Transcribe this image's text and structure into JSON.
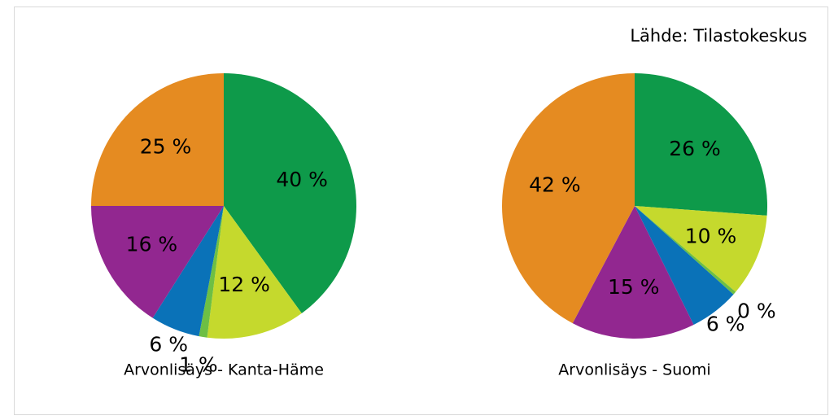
{
  "source": "Lähde: Tilastokeskus",
  "chart_data": [
    {
      "type": "pie",
      "title": "Arvonlisäys - Kanta-Häme",
      "values": [
        40,
        12,
        1,
        6,
        16,
        25
      ],
      "value_labels": [
        "40 %",
        "12 %",
        "1 %",
        "6 %",
        "16 %",
        "25 %"
      ],
      "colors": [
        "#0e9a4a",
        "#c5d92d",
        "#6dbf44",
        "#0a72b8",
        "#922790",
        "#e58b21"
      ]
    },
    {
      "type": "pie",
      "title": "Arvonlisäys - Suomi",
      "values": [
        26,
        10,
        0.4,
        6,
        15,
        42
      ],
      "value_labels": [
        "26 %",
        "10 %",
        "0 %",
        "6 %",
        "15 %",
        "42 %"
      ],
      "colors": [
        "#0e9a4a",
        "#c5d92d",
        "#6dbf44",
        "#0a72b8",
        "#922790",
        "#e58b21"
      ]
    }
  ]
}
